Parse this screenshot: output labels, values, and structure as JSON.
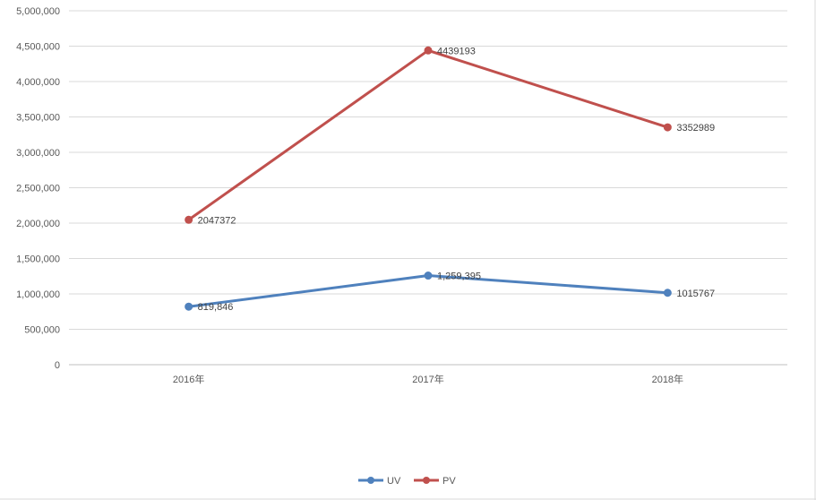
{
  "chart_data": {
    "type": "line",
    "categories": [
      "2016年",
      "2017年",
      "2018年"
    ],
    "series": [
      {
        "name": "UV",
        "values": [
          819846,
          1259395,
          1015767
        ],
        "labels": [
          "819,846",
          "1,259,395",
          "1015767"
        ],
        "color": "#4f81bd"
      },
      {
        "name": "PV",
        "values": [
          2047372,
          4439193,
          3352989
        ],
        "labels": [
          "2047372",
          "4439193",
          "3352989"
        ],
        "color": "#c0504d"
      }
    ],
    "y_ticks": [
      "0",
      "500,000",
      "1,000,000",
      "1,500,000",
      "2,000,000",
      "2,500,000",
      "3,000,000",
      "3,500,000",
      "4,000,000",
      "4,500,000",
      "5,000,000"
    ],
    "ylim": [
      0,
      5000000
    ],
    "grid": true,
    "legend": "bottom-center",
    "gridline_color": "#d9d9d9",
    "axis_color": "#bfbfbf"
  }
}
